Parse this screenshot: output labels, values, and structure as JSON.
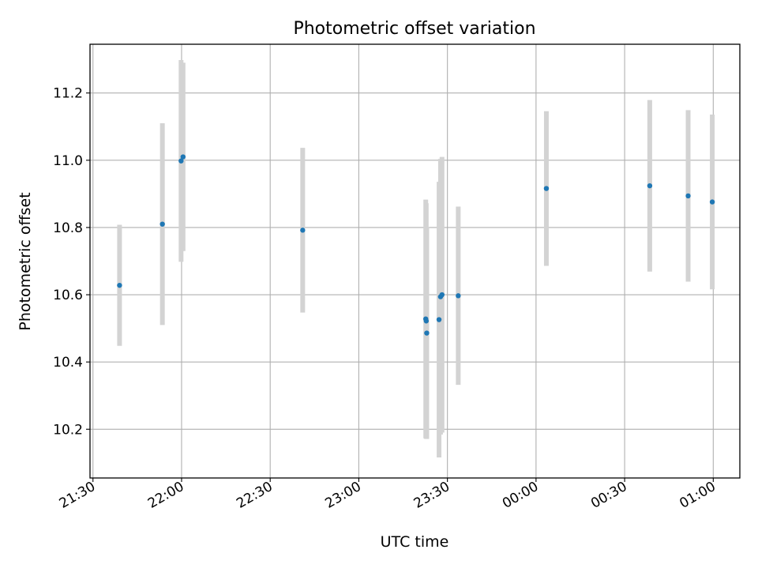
{
  "chart_data": {
    "type": "scatter",
    "title": "Photometric offset variation",
    "xlabel": "UTC time",
    "ylabel": "Photometric offset",
    "xlim": [
      "2000-01-01T21:29:00",
      "2000-01-02T01:09:00"
    ],
    "ylim": [
      10.055,
      11.345
    ],
    "grid": true,
    "xticks": [
      {
        "t": "2000-01-01T21:30:00",
        "label": "21:30"
      },
      {
        "t": "2000-01-01T22:00:00",
        "label": "22:00"
      },
      {
        "t": "2000-01-01T22:30:00",
        "label": "22:30"
      },
      {
        "t": "2000-01-01T23:00:00",
        "label": "23:00"
      },
      {
        "t": "2000-01-01T23:30:00",
        "label": "23:30"
      },
      {
        "t": "2000-01-02T00:00:00",
        "label": "00:00"
      },
      {
        "t": "2000-01-02T00:30:00",
        "label": "00:30"
      },
      {
        "t": "2000-01-02T01:00:00",
        "label": "01:00"
      }
    ],
    "yticks": [
      10.2,
      10.4,
      10.6,
      10.8,
      11.0,
      11.2
    ],
    "ytick_labels": [
      "10.2",
      "10.4",
      "10.6",
      "10.8",
      "11.0",
      "11.2"
    ],
    "marker_color": "#1f77b4",
    "errorbar_color": "#d3d3d3",
    "points": [
      {
        "t": "2000-01-01T21:39:00",
        "y": 10.628,
        "yerr": 0.18
      },
      {
        "t": "2000-01-01T21:53:30",
        "y": 10.81,
        "yerr": 0.3
      },
      {
        "t": "2000-01-01T21:59:50",
        "y": 10.998,
        "yerr": 0.3
      },
      {
        "t": "2000-01-01T22:00:30",
        "y": 11.01,
        "yerr": 0.28
      },
      {
        "t": "2000-01-01T22:41:00",
        "y": 10.792,
        "yerr": 0.245
      },
      {
        "t": "2000-01-01T23:22:40",
        "y": 10.528,
        "yerr": 0.355
      },
      {
        "t": "2000-01-01T23:22:50",
        "y": 10.522,
        "yerr": 0.35
      },
      {
        "t": "2000-01-01T23:23:00",
        "y": 10.486,
        "yerr": 0.315
      },
      {
        "t": "2000-01-01T23:27:10",
        "y": 10.526,
        "yerr": 0.41
      },
      {
        "t": "2000-01-01T23:27:40",
        "y": 10.594,
        "yerr": 0.41
      },
      {
        "t": "2000-01-01T23:28:10",
        "y": 10.6,
        "yerr": 0.41
      },
      {
        "t": "2000-01-01T23:33:40",
        "y": 10.597,
        "yerr": 0.265
      },
      {
        "t": "2000-01-02T00:03:30",
        "y": 10.916,
        "yerr": 0.23
      },
      {
        "t": "2000-01-02T00:38:30",
        "y": 10.924,
        "yerr": 0.255
      },
      {
        "t": "2000-01-02T00:51:30",
        "y": 10.894,
        "yerr": 0.255
      },
      {
        "t": "2000-01-02T00:59:40",
        "y": 10.876,
        "yerr": 0.26
      }
    ]
  }
}
